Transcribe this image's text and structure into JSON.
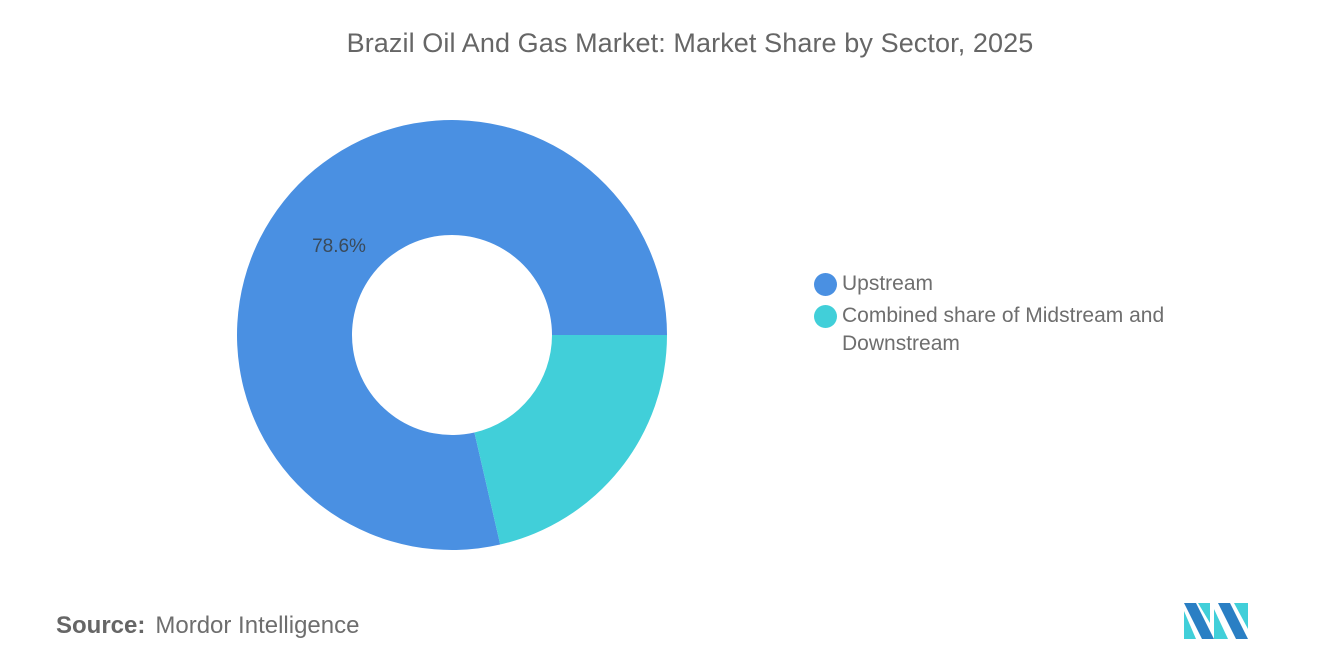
{
  "title": "Brazil Oil And Gas Market: Market Share by Sector, 2025",
  "chart_data": {
    "type": "pie",
    "subtype": "donut",
    "title": "Brazil Oil And Gas Market: Market Share by Sector, 2025",
    "categories": [
      "Upstream",
      "Combined share of Midstream and Downstream"
    ],
    "values": [
      78.6,
      21.4
    ],
    "colors": [
      "#4a90e2",
      "#41cfd9"
    ],
    "data_labels": [
      "78.6%",
      ""
    ],
    "legend_position": "right",
    "unit": "%"
  },
  "slice_labels": {
    "upstream": "78.6%"
  },
  "legend": {
    "items": [
      {
        "label": "Upstream",
        "color": "#4a90e2"
      },
      {
        "label": "Combined share of Midstream and Downstream",
        "color": "#41cfd9"
      }
    ]
  },
  "source": {
    "key": "Source:",
    "value": "Mordor Intelligence"
  },
  "logo": {
    "name": "Mordor Intelligence logo",
    "colors": [
      "#2a7fc4",
      "#41cfd9"
    ]
  }
}
